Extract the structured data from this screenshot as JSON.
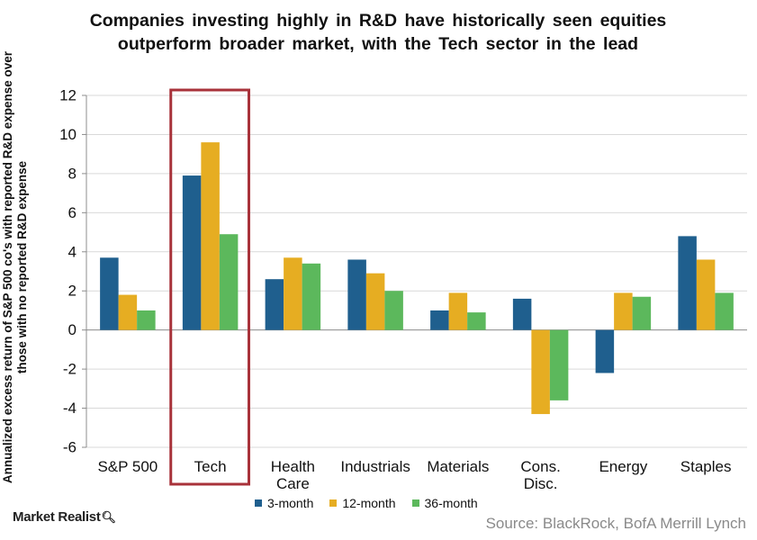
{
  "chart_data": {
    "type": "bar",
    "title": "Companies investing highly in R&D have historically seen equities outperform broader market, with the Tech sector in the lead",
    "ylabel": "Annualized excess return of S&P 500 co's with reported R&D expense over those with no reported R&D expense",
    "xlabel": "",
    "categories": [
      "S&P 500",
      "Tech",
      "Health Care",
      "Industrials",
      "Materials",
      "Cons. Disc.",
      "Energy",
      "Staples"
    ],
    "series": [
      {
        "name": "3-month",
        "color": "#1f5f8e",
        "values": [
          3.7,
          7.9,
          2.6,
          3.6,
          1.0,
          1.6,
          -2.2,
          4.8
        ]
      },
      {
        "name": "12-month",
        "color": "#e6ad22",
        "values": [
          1.8,
          9.6,
          3.7,
          2.9,
          1.9,
          -4.3,
          1.9,
          3.6
        ]
      },
      {
        "name": "36-month",
        "color": "#5cb85c",
        "values": [
          1.0,
          4.9,
          3.4,
          2.0,
          0.9,
          -3.6,
          1.7,
          1.9
        ]
      }
    ],
    "ylim": [
      -6,
      12
    ],
    "yticks": [
      -6,
      -4,
      -2,
      0,
      2,
      4,
      6,
      8,
      10,
      12
    ],
    "grid": true,
    "highlight_category": "Tech",
    "highlight_color": "#a8323a",
    "legend": "bottom-center"
  },
  "footer": {
    "brand": "Market Realist",
    "source": "Source: BlackRock, BofA Merrill Lynch"
  }
}
